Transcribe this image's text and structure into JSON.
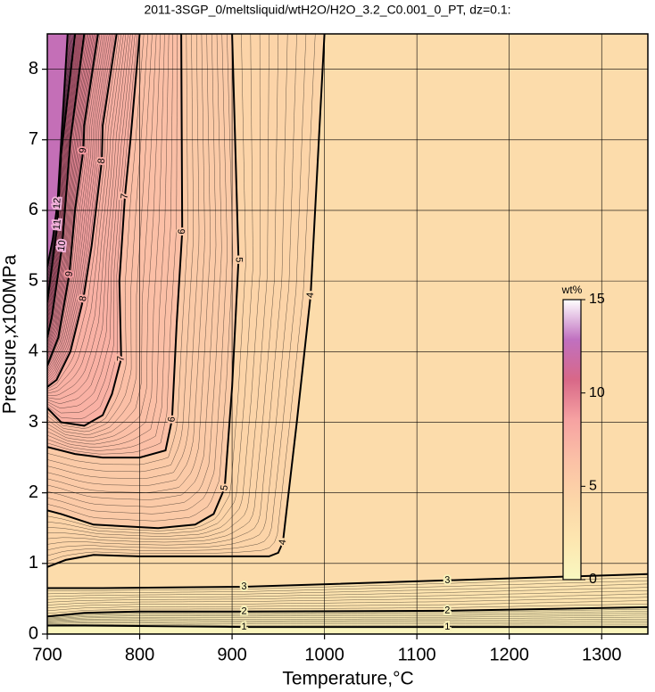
{
  "chart_data": {
    "type": "contour",
    "title": "2011-3SGP_0/meltsliquid/wtH2O/H2O_3.2_C0.001_0_PT, dz=0.1:",
    "xlabel": "Temperature,°C",
    "ylabel": "Pressure,x100MPa",
    "xlim": [
      700,
      1350
    ],
    "ylim": [
      0,
      8.5
    ],
    "xticks": [
      700,
      800,
      900,
      1000,
      1100,
      1200,
      1300
    ],
    "yticks": [
      0,
      1,
      2,
      3,
      4,
      5,
      6,
      7,
      8
    ],
    "grid": true,
    "colormap": [
      "#f8f8c0",
      "#fde6b0",
      "#fcd6a8",
      "#fbc0a6",
      "#f6a2a2",
      "#d86888",
      "#c070c0",
      "#ffffff"
    ],
    "colorbar": {
      "label": "wt%",
      "lim": [
        0,
        15
      ],
      "ticks": [
        0,
        5,
        10,
        15
      ]
    },
    "contours": [
      {
        "level": 1,
        "x": [
          700,
          740,
          913,
          1133,
          1350
        ],
        "y": [
          0.12,
          0.12,
          0.1,
          0.1,
          0.1
        ]
      },
      {
        "level": 2,
        "x": [
          700,
          740,
          800,
          913,
          1133,
          1350
        ],
        "y": [
          0.25,
          0.3,
          0.32,
          0.32,
          0.33,
          0.38
        ]
      },
      {
        "level": 3,
        "x": [
          700,
          760,
          913,
          1133,
          1350
        ],
        "y": [
          0.65,
          0.65,
          0.67,
          0.76,
          0.85
        ]
      },
      {
        "level": 4,
        "x": [
          1000,
          985,
          970,
          955,
          950,
          940,
          800,
          750,
          720,
          700
        ],
        "y": [
          8.5,
          4.8,
          3,
          1.3,
          1.15,
          1.1,
          1.1,
          1.12,
          1.05,
          0.95
        ]
      },
      {
        "level": 5,
        "x": [
          900,
          907,
          900,
          892,
          880,
          860,
          820,
          750,
          715,
          700
        ],
        "y": [
          8.5,
          5.3,
          3.5,
          2.07,
          1.7,
          1.55,
          1.5,
          1.55,
          1.7,
          1.75
        ]
      },
      {
        "level": 6,
        "x": [
          845,
          846,
          840,
          835,
          828,
          800,
          760,
          730,
          700
        ],
        "y": [
          8.5,
          5.7,
          4.4,
          3.04,
          2.6,
          2.5,
          2.5,
          2.55,
          2.65
        ]
      },
      {
        "level": 7,
        "x": [
          800,
          790,
          784,
          778,
          780,
          770,
          760,
          740,
          715,
          700
        ],
        "y": [
          8.5,
          7,
          6.2,
          5,
          3.9,
          3.4,
          3.1,
          2.95,
          3.0,
          3.2
        ]
      },
      {
        "level": 8,
        "x": [
          775,
          760,
          759,
          748,
          739,
          725,
          710,
          700
        ],
        "y": [
          8.5,
          7.2,
          6.7,
          5.5,
          4.75,
          4,
          3.6,
          3.5
        ]
      },
      {
        "level": 9,
        "x": [
          755,
          740,
          739,
          730,
          724,
          712,
          700
        ],
        "y": [
          8.5,
          7.2,
          6.85,
          6,
          5.1,
          4.2,
          3.8
        ]
      },
      {
        "level": 10,
        "x": [
          740,
          725,
          716,
          705,
          700
        ],
        "y": [
          8.5,
          7,
          5.5,
          4.5,
          4.2
        ]
      },
      {
        "level": 11,
        "x": [
          730,
          715,
          711,
          703,
          700
        ],
        "y": [
          8.5,
          6.8,
          5.8,
          5.0,
          4.7
        ]
      },
      {
        "level": 12,
        "x": [
          722,
          711,
          706,
          700
        ],
        "y": [
          8.5,
          6.1,
          5.6,
          5.2
        ]
      }
    ]
  }
}
